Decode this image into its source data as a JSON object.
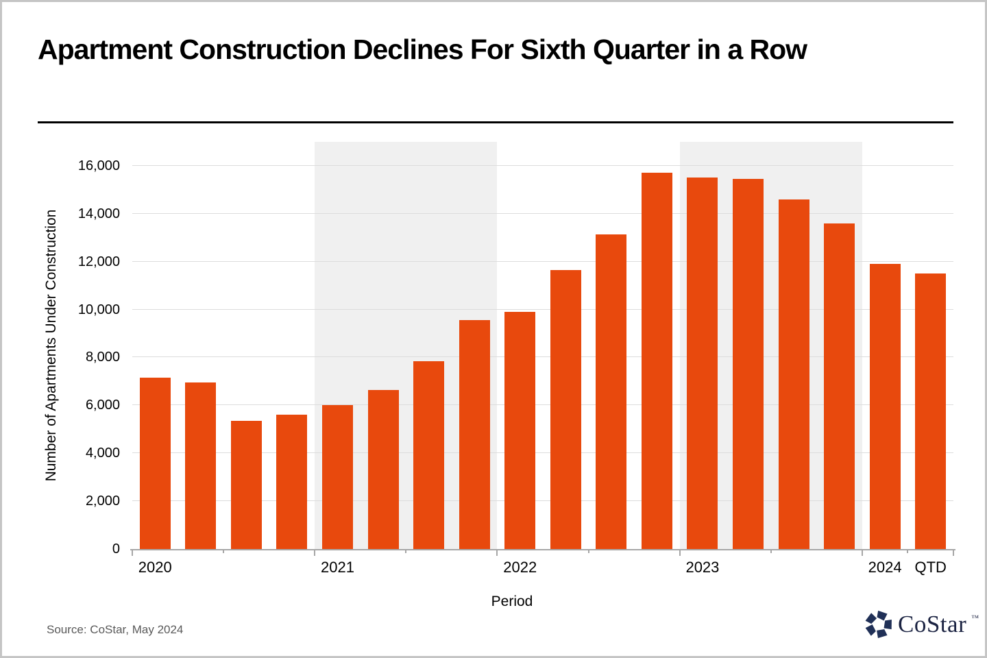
{
  "page": {
    "source_note": "Source: CoStar, May 2024",
    "brand": {
      "name": "CoStar",
      "trademark": "™"
    }
  },
  "chart_data": {
    "type": "bar",
    "title": "Apartment Construction Declines For Sixth Quarter in a Row",
    "xlabel": "Period",
    "ylabel": "Number of Apartments Under Construction",
    "categories": [
      "2020 Q1",
      "2020 Q2",
      "2020 Q3",
      "2020 Q4",
      "2021 Q1",
      "2021 Q2",
      "2021 Q3",
      "2021 Q4",
      "2022 Q1",
      "2022 Q2",
      "2022 Q3",
      "2022 Q4",
      "2023 Q1",
      "2023 Q2",
      "2023 Q3",
      "2023 Q4",
      "2024 Q1",
      "2024 QTD"
    ],
    "values": [
      7150,
      6950,
      5350,
      5600,
      6000,
      6650,
      7850,
      9550,
      9900,
      11650,
      13150,
      15700,
      15500,
      15450,
      14600,
      13600,
      11900,
      11500
    ],
    "x_groups": [
      {
        "label": "2020",
        "start_slot": 0,
        "slots": 4,
        "shaded": false
      },
      {
        "label": "2021",
        "start_slot": 4,
        "slots": 4,
        "shaded": true
      },
      {
        "label": "2022",
        "start_slot": 8,
        "slots": 4,
        "shaded": false
      },
      {
        "label": "2023",
        "start_slot": 12,
        "slots": 4,
        "shaded": true
      },
      {
        "label": "2024",
        "start_slot": 16,
        "slots": 1,
        "shaded": false
      },
      {
        "label": "QTD",
        "start_slot": 17,
        "slots": 1,
        "shaded": false
      }
    ],
    "total_slots": 18,
    "major_tick_slots": [
      0,
      4,
      8,
      12,
      16,
      18
    ],
    "minor_tick_slots": [
      2,
      6,
      10,
      14,
      17
    ],
    "y_ticks": [
      0,
      2000,
      4000,
      6000,
      8000,
      10000,
      12000,
      14000,
      16000
    ],
    "ylim": [
      0,
      17000
    ],
    "grid": "horizontal",
    "legend": "none",
    "colors": {
      "bar": "#E8490D",
      "year_band": "#F0F0F0",
      "gridline": "#DCDCDC",
      "axis": "#A6A6A6",
      "title_text": "#000000",
      "source_text": "#595959",
      "logo_navy": "#203057"
    }
  }
}
